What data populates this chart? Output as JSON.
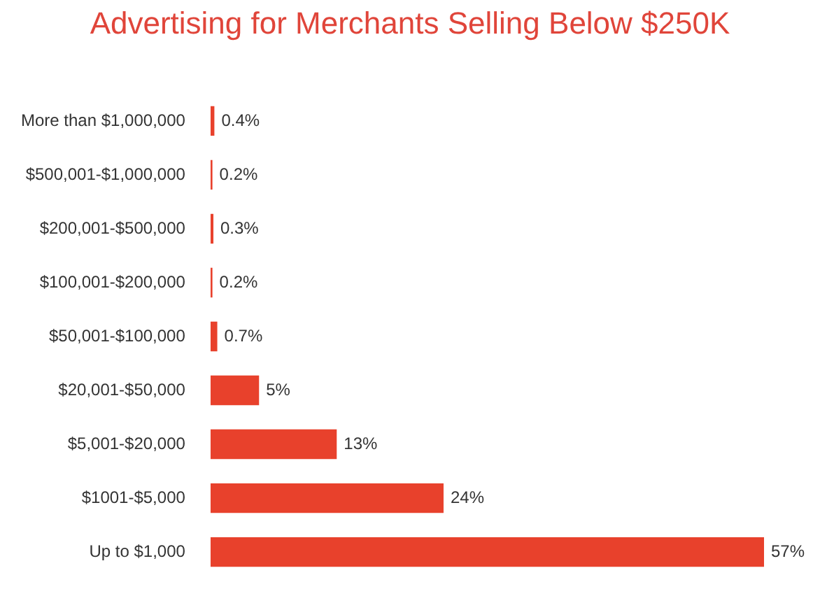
{
  "chart_data": {
    "type": "bar",
    "orientation": "horizontal",
    "title": "Advertising for Merchants Selling Below $250K",
    "categories": [
      "More than $1,000,000",
      "$500,001-$1,000,000",
      "$200,001-$500,000",
      "$100,001-$200,000",
      "$50,001-$100,000",
      "$20,001-$50,000",
      "$5,001-$20,000",
      "$1001-$5,000",
      "Up to $1,000"
    ],
    "values": [
      0.4,
      0.2,
      0.3,
      0.2,
      0.7,
      5,
      13,
      24,
      57
    ],
    "value_labels": [
      "0.4%",
      "0.2%",
      "0.3%",
      "0.2%",
      "0.7%",
      "5%",
      "13%",
      "24%",
      "57%"
    ],
    "color": "#e8412c",
    "legend": false
  }
}
